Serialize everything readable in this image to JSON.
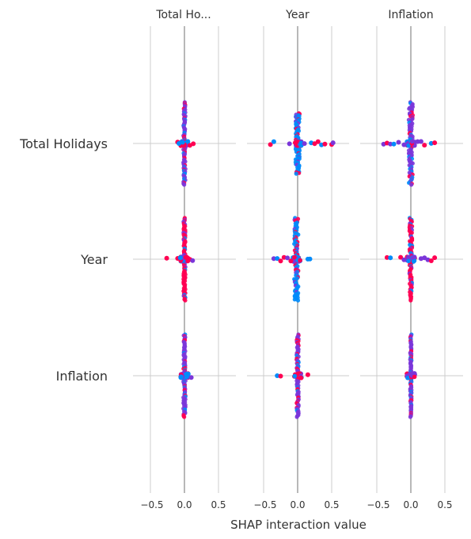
{
  "chart_data": {
    "type": "scatter",
    "subtype": "shap-interaction-summary",
    "xlabel": "SHAP interaction value",
    "columns": [
      "Total Ho...",
      "Year",
      "Inflation"
    ],
    "rows": [
      "Total Holidays",
      "Year",
      "Inflation"
    ],
    "xlim": [
      -0.8,
      0.8
    ],
    "x_ticks": [
      -0.5,
      0.0,
      0.5
    ],
    "x_tick_labels": [
      "−0.5",
      "0.0",
      "0.5"
    ],
    "grid": true,
    "colors": {
      "high": "#ff0052",
      "mid": "#7b36d9",
      "low": "#008bfb",
      "zero_line": "#999999",
      "grid": "#cccccc"
    },
    "cells": [
      [
        {
          "center": 0.0,
          "spread": 0.015,
          "vertical_extent": 0.75,
          "outliers": [
            -0.1,
            -0.08,
            0.05,
            0.08,
            0.13
          ],
          "dominant": "mid"
        },
        {
          "center": 0.0,
          "spread": 0.03,
          "vertical_extent": 0.55,
          "outliers": [
            -0.4,
            -0.35,
            -0.12,
            0.05,
            0.1,
            0.2,
            0.25,
            0.3,
            0.35,
            0.4,
            0.5,
            0.52
          ],
          "dominant": "low"
        },
        {
          "center": 0.0,
          "spread": 0.03,
          "vertical_extent": 0.75,
          "outliers": [
            -0.4,
            -0.35,
            -0.3,
            -0.25,
            -0.18,
            -0.1,
            0.1,
            0.15,
            0.2,
            0.3,
            0.35
          ],
          "dominant": "mid"
        }
      ],
      [
        {
          "center": 0.0,
          "spread": 0.015,
          "vertical_extent": 0.75,
          "outliers": [
            -0.26,
            -0.1,
            -0.06,
            0.05,
            0.08,
            0.12
          ],
          "dominant": "high"
        },
        {
          "center": -0.02,
          "spread": 0.03,
          "vertical_extent": 0.75,
          "outliers": [
            -0.35,
            -0.3,
            -0.25,
            -0.2,
            -0.15,
            -0.1,
            0.15,
            0.18
          ],
          "dominant": "low"
        },
        {
          "center": 0.0,
          "spread": 0.02,
          "vertical_extent": 0.75,
          "outliers": [
            -0.35,
            -0.3,
            -0.15,
            -0.1,
            0.15,
            0.2,
            0.25,
            0.3,
            0.35
          ],
          "dominant": "high"
        }
      ],
      [
        {
          "center": 0.0,
          "spread": 0.015,
          "vertical_extent": 0.75,
          "outliers": [
            -0.05,
            0.05,
            0.1
          ],
          "dominant": "mid"
        },
        {
          "center": 0.0,
          "spread": 0.015,
          "vertical_extent": 0.75,
          "outliers": [
            -0.3,
            -0.25,
            0.15
          ],
          "dominant": "mid"
        },
        {
          "center": 0.0,
          "spread": 0.01,
          "vertical_extent": 0.75,
          "outliers": [],
          "dominant": "mid"
        }
      ]
    ]
  }
}
